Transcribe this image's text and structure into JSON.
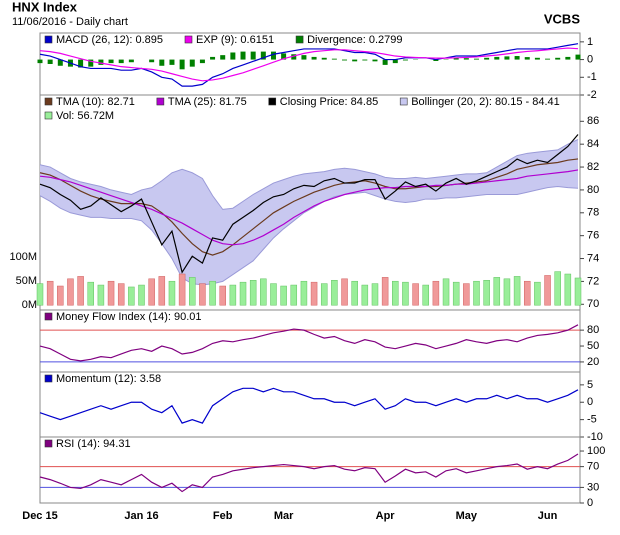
{
  "header": {
    "title": "HNX Index",
    "subtitle": "11/06/2016 - Daily chart",
    "source": "VCBS"
  },
  "chart_data": [
    {
      "type": "line",
      "ylim": [
        -2,
        1.5
      ],
      "yticks": [
        -2,
        -1,
        0,
        1
      ],
      "series": [
        {
          "name": "MACD (26, 12): 0.895",
          "type": "line",
          "color": "#0000cc",
          "values": [
            0.3,
            0.2,
            0.0,
            -0.2,
            -0.4,
            -0.5,
            -0.5,
            -0.5,
            -0.6,
            -0.6,
            -0.5,
            -0.7,
            -1.0,
            -1.1,
            -1.5,
            -1.5,
            -1.4,
            -1.0,
            -0.8,
            -0.5,
            -0.3,
            -0.1,
            0.1,
            0.3,
            0.4,
            0.5,
            0.6,
            0.6,
            0.6,
            0.6,
            0.5,
            0.4,
            0.4,
            0.3,
            0.0,
            0.0,
            0.1,
            0.1,
            0.1,
            0.0,
            0.1,
            0.2,
            0.2,
            0.2,
            0.3,
            0.4,
            0.5,
            0.6,
            0.6,
            0.6,
            0.6,
            0.7,
            0.8,
            0.895
          ]
        },
        {
          "name": "EXP (9): 0.6151",
          "type": "line",
          "color": "#ee00ee",
          "values": [
            0.5,
            0.45,
            0.35,
            0.2,
            0.05,
            -0.1,
            -0.2,
            -0.3,
            -0.4,
            -0.45,
            -0.5,
            -0.55,
            -0.65,
            -0.8,
            -0.95,
            -1.1,
            -1.2,
            -1.15,
            -1.05,
            -0.9,
            -0.75,
            -0.55,
            -0.35,
            -0.15,
            0.05,
            0.2,
            0.35,
            0.45,
            0.5,
            0.55,
            0.55,
            0.5,
            0.45,
            0.4,
            0.3,
            0.2,
            0.15,
            0.12,
            0.1,
            0.08,
            0.08,
            0.1,
            0.12,
            0.15,
            0.2,
            0.25,
            0.32,
            0.4,
            0.46,
            0.5,
            0.55,
            0.6,
            0.65,
            0.6151
          ]
        },
        {
          "name": "Divergence: 0.2799",
          "type": "bar",
          "color": "#008000",
          "values": [
            -0.2,
            -0.25,
            -0.35,
            -0.4,
            -0.45,
            -0.4,
            -0.3,
            -0.2,
            -0.2,
            -0.15,
            0,
            -0.15,
            -0.35,
            -0.3,
            -0.55,
            -0.4,
            -0.2,
            0.15,
            0.25,
            0.4,
            0.45,
            0.45,
            0.45,
            0.45,
            0.35,
            0.3,
            0.25,
            0.15,
            0.1,
            0.05,
            -0.05,
            -0.1,
            -0.05,
            -0.1,
            -0.3,
            -0.2,
            -0.05,
            -0.02,
            0,
            -0.08,
            0.02,
            0.1,
            0.08,
            0.05,
            0.1,
            0.15,
            0.18,
            0.2,
            0.14,
            0.1,
            0.05,
            0.1,
            0.15,
            0.2799
          ]
        }
      ]
    },
    {
      "type": "line",
      "ylim": [
        69.5,
        88.3
      ],
      "yticks": [
        70,
        72,
        74,
        76,
        78,
        80,
        82,
        84,
        86
      ],
      "y2lim": [
        -10,
        438
      ],
      "y2ticks": [
        {
          "value": 0,
          "label": "0M"
        },
        {
          "value": 50,
          "label": "50M"
        },
        {
          "value": 100,
          "label": "100M"
        }
      ],
      "series": [
        {
          "name": "TMA (10): 82.71",
          "type": "line",
          "color": "#6b3a1e",
          "values": [
            81.5,
            81.3,
            80.9,
            80.4,
            79.9,
            79.5,
            79.2,
            79.0,
            78.8,
            78.8,
            78.8,
            78.6,
            78.0,
            77.2,
            76.2,
            75.3,
            74.6,
            74.3,
            74.6,
            75.2,
            75.9,
            76.6,
            77.3,
            78.0,
            78.5,
            79.0,
            79.4,
            79.8,
            80.1,
            80.4,
            80.6,
            80.7,
            80.8,
            80.6,
            80.3,
            80.1,
            80.1,
            80.2,
            80.3,
            80.3,
            80.4,
            80.5,
            80.6,
            80.7,
            80.8,
            81.1,
            81.4,
            81.8,
            82.0,
            82.2,
            82.3,
            82.4,
            82.6,
            82.71
          ]
        },
        {
          "name": "TMA (25): 81.75",
          "type": "line",
          "color": "#b000d0",
          "values": [
            81.2,
            81.1,
            80.9,
            80.7,
            80.4,
            80.1,
            79.8,
            79.5,
            79.2,
            78.9,
            78.6,
            78.3,
            77.9,
            77.5,
            77.1,
            76.6,
            76.1,
            75.6,
            75.3,
            75.2,
            75.3,
            75.6,
            76.0,
            76.5,
            77.0,
            77.6,
            78.1,
            78.6,
            79.0,
            79.3,
            79.6,
            79.8,
            80.0,
            80.1,
            80.2,
            80.2,
            80.3,
            80.3,
            80.3,
            80.4,
            80.4,
            80.5,
            80.5,
            80.6,
            80.7,
            80.8,
            80.9,
            81.0,
            81.2,
            81.3,
            81.4,
            81.5,
            81.6,
            81.75
          ]
        },
        {
          "name": "Closing Price: 84.85",
          "type": "line",
          "color": "#000000",
          "values": [
            80.5,
            80.2,
            79.6,
            79.1,
            78.3,
            78.6,
            79.3,
            78.7,
            78.1,
            78.6,
            79.2,
            77.2,
            75.2,
            76.4,
            72.8,
            74.2,
            73.6,
            75.8,
            75.6,
            77.0,
            77.6,
            78.2,
            78.9,
            79.4,
            79.6,
            80.1,
            80.4,
            80.3,
            80.8,
            81.0,
            80.6,
            80.6,
            80.9,
            80.9,
            79.2,
            79.9,
            80.7,
            80.3,
            80.5,
            79.9,
            80.6,
            81.0,
            80.5,
            80.8,
            81.2,
            81.6,
            82.0,
            82.7,
            82.3,
            82.6,
            82.4,
            83.1,
            83.8,
            84.85
          ]
        },
        {
          "name": "Bollinger (20, 2): 80.15 - 84.41",
          "type": "band",
          "color": "#c8c8f0",
          "upper": [
            82.2,
            82.0,
            81.5,
            81.0,
            80.7,
            80.5,
            80.3,
            80.0,
            79.8,
            79.6,
            80.0,
            80.2,
            80.8,
            81.5,
            81.8,
            81.5,
            81.0,
            79.5,
            78.3,
            78.4,
            79.0,
            79.6,
            80.1,
            80.6,
            80.9,
            81.2,
            81.4,
            81.5,
            81.6,
            81.8,
            81.9,
            81.8,
            81.6,
            81.4,
            81.1,
            81.0,
            81.0,
            81.1,
            81.0,
            81.1,
            81.2,
            81.3,
            81.4,
            81.4,
            81.5,
            82.0,
            82.5,
            83.0,
            83.2,
            83.3,
            83.4,
            83.5,
            84.0,
            84.41
          ],
          "lower": [
            79.5,
            79.0,
            78.4,
            78.0,
            77.8,
            77.6,
            77.6,
            77.5,
            77.5,
            77.5,
            77.3,
            76.5,
            75.3,
            74.0,
            72.3,
            71.8,
            71.7,
            71.8,
            72.0,
            72.6,
            73.2,
            73.8,
            74.8,
            75.8,
            76.6,
            77.3,
            78.0,
            78.5,
            79.0,
            79.4,
            79.6,
            79.7,
            79.8,
            79.5,
            79.2,
            79.0,
            78.9,
            79.0,
            79.2,
            79.2,
            79.3,
            79.3,
            79.4,
            79.5,
            79.6,
            79.6,
            79.6,
            79.6,
            79.8,
            80.0,
            80.2,
            80.3,
            80.2,
            80.15
          ]
        },
        {
          "name": "Vol: 56.72M",
          "type": "volume",
          "axis": "y2",
          "color": "#99ee99",
          "down_color": "#f09999",
          "values": [
            45,
            50,
            40,
            55,
            60,
            48,
            42,
            50,
            45,
            38,
            42,
            55,
            60,
            50,
            65,
            58,
            45,
            50,
            40,
            42,
            48,
            52,
            55,
            45,
            40,
            42,
            50,
            48,
            45,
            52,
            55,
            50,
            42,
            45,
            58,
            50,
            48,
            45,
            42,
            50,
            55,
            48,
            45,
            50,
            52,
            58,
            55,
            60,
            50,
            48,
            62,
            70,
            65,
            56.72
          ]
        }
      ]
    },
    {
      "type": "line",
      "ylim": [
        1,
        118
      ],
      "yticks": [
        20,
        50,
        80
      ],
      "ref_lines": [
        {
          "value": 80,
          "color": "#e05050"
        },
        {
          "value": 20,
          "color": "#5050e0"
        }
      ],
      "series": [
        {
          "name": "Money Flow Index (14): 90.01",
          "type": "line",
          "color": "#800080",
          "values": [
            50,
            45,
            35,
            25,
            22,
            25,
            30,
            28,
            35,
            42,
            45,
            40,
            50,
            45,
            35,
            38,
            45,
            55,
            60,
            58,
            62,
            65,
            70,
            75,
            78,
            82,
            80,
            72,
            65,
            68,
            60,
            55,
            62,
            58,
            48,
            45,
            50,
            55,
            52,
            45,
            50,
            55,
            62,
            58,
            55,
            60,
            62,
            58,
            65,
            70,
            72,
            75,
            80,
            90.01
          ]
        }
      ]
    },
    {
      "type": "line",
      "ylim": [
        -10,
        8.7
      ],
      "yticks": [
        -10,
        -5,
        0,
        5
      ],
      "series": [
        {
          "name": "Momentum (12): 3.58",
          "type": "line",
          "color": "#0000cc",
          "values": [
            -3,
            -4,
            -5,
            -4,
            -3,
            -2,
            -1,
            -2,
            -1,
            0,
            0,
            -2,
            -3,
            -1,
            -6,
            -5,
            -6,
            -1,
            1,
            3,
            4,
            4,
            3,
            4,
            3,
            3,
            2,
            1,
            1,
            0,
            0,
            -1,
            0,
            1,
            -2,
            -1,
            1,
            0,
            0,
            -1,
            0,
            1,
            0,
            1,
            1,
            2,
            1,
            2,
            1,
            1,
            0,
            1,
            2,
            3.58
          ]
        }
      ]
    },
    {
      "type": "line",
      "ylim": [
        0,
        127
      ],
      "yticks": [
        0,
        30,
        70,
        100
      ],
      "ref_lines": [
        {
          "value": 70,
          "color": "#e05050"
        },
        {
          "value": 30,
          "color": "#5050e0"
        }
      ],
      "categories": [
        "Dec 15",
        null,
        null,
        null,
        null,
        null,
        null,
        null,
        null,
        null,
        "Jan 16",
        null,
        null,
        null,
        null,
        null,
        null,
        null,
        "Feb",
        null,
        null,
        null,
        null,
        null,
        "Mar",
        null,
        null,
        null,
        null,
        null,
        null,
        null,
        null,
        null,
        "Apr",
        null,
        null,
        null,
        null,
        null,
        null,
        null,
        "May",
        null,
        null,
        null,
        null,
        null,
        null,
        null,
        "Jun",
        null,
        null,
        null
      ],
      "series": [
        {
          "name": "RSI (14): 94.31",
          "type": "line",
          "color": "#800080",
          "values": [
            50,
            45,
            38,
            30,
            28,
            35,
            45,
            40,
            35,
            45,
            55,
            40,
            30,
            38,
            22,
            35,
            30,
            50,
            55,
            62,
            65,
            68,
            70,
            72,
            74,
            72,
            70,
            66,
            70,
            72,
            65,
            62,
            68,
            66,
            40,
            52,
            65,
            58,
            60,
            50,
            62,
            66,
            58,
            62,
            66,
            70,
            72,
            75,
            65,
            70,
            66,
            75,
            82,
            94.31
          ]
        }
      ]
    }
  ]
}
